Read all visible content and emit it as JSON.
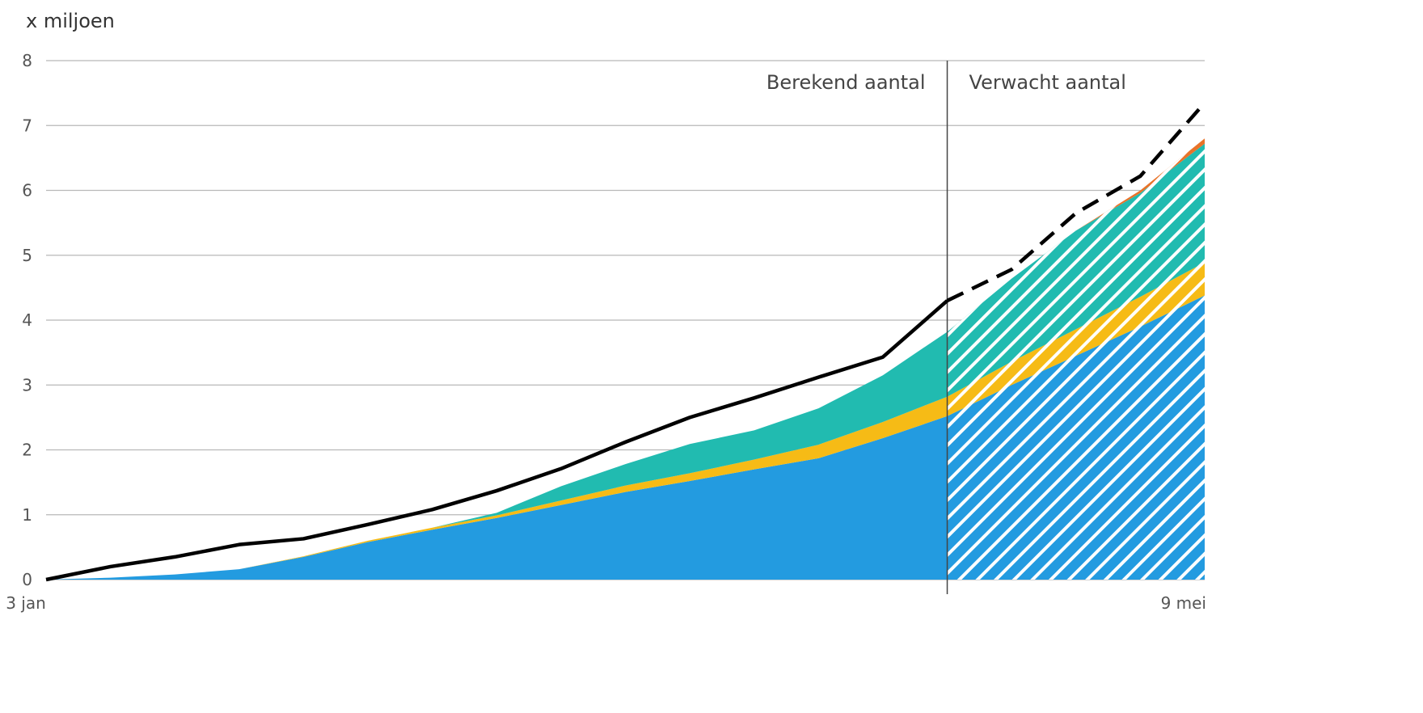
{
  "chart_data": {
    "type": "area",
    "unit_label": "x miljoen",
    "x_start_label": "3 jan",
    "x_end_label": "9 mei",
    "n_points": 19,
    "split_index": 14,
    "ylim": [
      0,
      8
    ],
    "yticks": [
      0,
      1,
      2,
      3,
      4,
      5,
      6,
      7,
      8
    ],
    "ytick_labels": [
      "0",
      "1",
      "2",
      "3",
      "4",
      "5",
      "6",
      "7",
      "8"
    ],
    "grid": true,
    "annotations": [
      {
        "text": "Berekend aantal"
      },
      {
        "text": "Verwacht aantal"
      }
    ],
    "series": [
      {
        "key": "blue",
        "color": "#239be0",
        "values": [
          0,
          0.03,
          0.08,
          0.16,
          0.35,
          0.58,
          0.77,
          0.95,
          1.15,
          1.35,
          1.52,
          1.7,
          1.87,
          2.18,
          2.52,
          3.0,
          3.45,
          3.9,
          4.38
        ]
      },
      {
        "key": "yellow",
        "color": "#f6bb16",
        "values": [
          0,
          0,
          0,
          0,
          0.01,
          0.02,
          0.03,
          0.04,
          0.07,
          0.1,
          0.12,
          0.15,
          0.21,
          0.25,
          0.3,
          0.36,
          0.41,
          0.46,
          0.51
        ]
      },
      {
        "key": "teal",
        "color": "#21bbb0",
        "values": [
          0,
          0,
          0,
          0,
          0,
          0,
          0,
          0.04,
          0.22,
          0.33,
          0.45,
          0.45,
          0.56,
          0.72,
          1.0,
          1.28,
          1.52,
          1.6,
          1.83
        ]
      },
      {
        "key": "orange",
        "color": "#e8732a",
        "values": [
          0,
          0,
          0,
          0,
          0,
          0,
          0,
          0,
          0,
          0,
          0,
          0,
          0,
          0,
          0,
          0,
          0,
          0.04,
          0.08
        ]
      }
    ],
    "total_line": {
      "color": "#000000",
      "values": [
        0,
        0.2,
        0.35,
        0.54,
        0.63,
        0.85,
        1.08,
        1.37,
        1.71,
        2.12,
        2.5,
        2.8,
        3.12,
        3.43,
        4.3,
        4.78,
        5.65,
        6.22,
        7.35
      ]
    }
  }
}
